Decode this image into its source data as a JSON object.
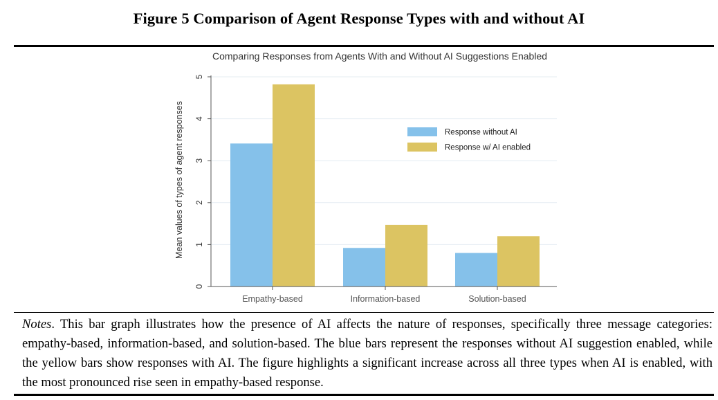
{
  "figure": {
    "title": "Figure 5 Comparison of Agent Response Types with and without AI"
  },
  "notes": {
    "label": "Notes",
    "text": ". This bar graph illustrates how the presence of AI affects the nature of responses, specifically three message categories: empathy-based, information-based, and solution-based. The blue bars represent the responses without AI suggestion enabled, while the yellow bars show responses with AI. The figure highlights a significant increase across all three types when AI is enabled, with the most pronounced rise seen in empathy-based response."
  },
  "colors": {
    "without_ai": "#85c1ea",
    "with_ai": "#dcc462",
    "grid": "#e4ecf2",
    "axis": "#555555"
  },
  "chart_data": {
    "type": "bar",
    "title": "Comparing Responses from Agents With and Without AI Suggestions Enabled",
    "xlabel": "",
    "ylabel": "Mean values of types of agent responses",
    "categories": [
      "Empathy-based",
      "Information-based",
      "Solution-based"
    ],
    "series": [
      {
        "name": "Response without AI",
        "values": [
          3.41,
          0.92,
          0.8
        ]
      },
      {
        "name": "Response w/ AI enabled",
        "values": [
          4.82,
          1.47,
          1.2
        ]
      }
    ],
    "ylim": [
      0,
      5
    ],
    "yticks": [
      "0",
      "1",
      "2",
      "3",
      "4",
      "5"
    ],
    "grid": true,
    "legend_position": "right"
  }
}
